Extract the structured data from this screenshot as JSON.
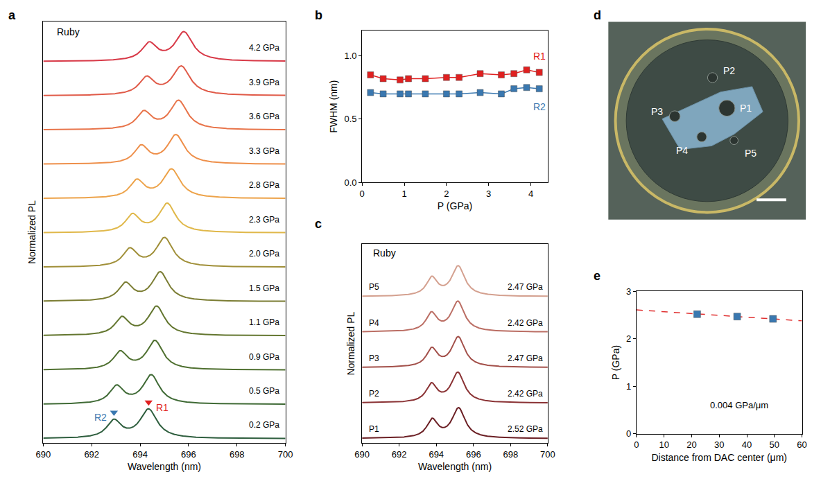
{
  "chart_data": [
    {
      "panel": "a",
      "type": "line",
      "annotation": "Ruby",
      "xlabel": "Wavelength (nm)",
      "ylabel": "Normalized PL",
      "xlim": [
        690,
        700
      ],
      "xticks": [
        690,
        692,
        694,
        696,
        698,
        700
      ],
      "tick_labels": "x",
      "peak_markers": [
        {
          "text": "R2",
          "peak": "r2",
          "color": "#3a78b0",
          "marker": "triangle-down"
        },
        {
          "text": "R1",
          "peak": "r1",
          "color": "#e02020",
          "marker": "triangle-down"
        }
      ],
      "series": [
        {
          "name": "0.2 GPa",
          "color": "#2e5e3e",
          "r1": 694.35,
          "r2": 692.92,
          "r1_height": 1,
          "r2_height": 0.6,
          "r1_fwhm": 0.85,
          "r2_fwhm": 0.71
        },
        {
          "name": "0.5 GPa",
          "color": "#3f6a35",
          "r1": 694.46,
          "r2": 693.03,
          "r1_height": 1,
          "r2_height": 0.6,
          "r1_fwhm": 0.82,
          "r2_fwhm": 0.7
        },
        {
          "name": "0.9 GPa",
          "color": "#4f7030",
          "r1": 694.61,
          "r2": 693.18,
          "r1_height": 1,
          "r2_height": 0.6,
          "r1_fwhm": 0.81,
          "r2_fwhm": 0.7
        },
        {
          "name": "1.1 GPa",
          "color": "#63762f",
          "r1": 694.68,
          "r2": 693.25,
          "r1_height": 1,
          "r2_height": 0.6,
          "r1_fwhm": 0.82,
          "r2_fwhm": 0.7
        },
        {
          "name": "1.5 GPa",
          "color": "#7b7d33",
          "r1": 694.83,
          "r2": 693.4,
          "r1_height": 1,
          "r2_height": 0.6,
          "r1_fwhm": 0.82,
          "r2_fwhm": 0.7
        },
        {
          "name": "2.0 GPa",
          "color": "#a08f38",
          "r1": 695.01,
          "r2": 693.58,
          "r1_height": 1,
          "r2_height": 0.6,
          "r1_fwhm": 0.83,
          "r2_fwhm": 0.7
        },
        {
          "name": "2.3 GPa",
          "color": "#e0b84a",
          "r1": 695.12,
          "r2": 693.69,
          "r1_height": 1,
          "r2_height": 0.6,
          "r1_fwhm": 0.83,
          "r2_fwhm": 0.7
        },
        {
          "name": "2.8 GPa",
          "color": "#eda34a",
          "r1": 695.3,
          "r2": 693.87,
          "r1_height": 1,
          "r2_height": 0.6,
          "r1_fwhm": 0.86,
          "r2_fwhm": 0.71
        },
        {
          "name": "3.3 GPa",
          "color": "#ee8f4a",
          "r1": 695.48,
          "r2": 694.05,
          "r1_height": 1,
          "r2_height": 0.6,
          "r1_fwhm": 0.85,
          "r2_fwhm": 0.7
        },
        {
          "name": "3.6 GPa",
          "color": "#e8744a",
          "r1": 695.59,
          "r2": 694.16,
          "r1_height": 1,
          "r2_height": 0.6,
          "r1_fwhm": 0.86,
          "r2_fwhm": 0.74
        },
        {
          "name": "3.9 GPa",
          "color": "#e05a48",
          "r1": 695.7,
          "r2": 694.27,
          "r1_height": 1,
          "r2_height": 0.6,
          "r1_fwhm": 0.89,
          "r2_fwhm": 0.75
        },
        {
          "name": "4.2 GPa",
          "color": "#d83a48",
          "r1": 695.81,
          "r2": 694.38,
          "r1_height": 1,
          "r2_height": 0.6,
          "r1_fwhm": 0.87,
          "r2_fwhm": 0.74
        }
      ]
    },
    {
      "panel": "b",
      "type": "line",
      "marker": "square",
      "xlabel": "P (GPa)",
      "ylabel": "FWHM (nm)",
      "xlim": [
        0,
        4.4
      ],
      "xticks": [
        0,
        1,
        2,
        3,
        4
      ],
      "ylim": [
        0,
        1.2
      ],
      "yticks": [
        {
          "value": 0,
          "label": "0.0"
        },
        {
          "value": 0.5,
          "label": "0.5"
        },
        {
          "value": 1,
          "label": "1.0"
        }
      ],
      "x": [
        0.2,
        0.5,
        0.9,
        1.1,
        1.5,
        2.0,
        2.3,
        2.8,
        3.3,
        3.6,
        3.9,
        4.2
      ],
      "series": [
        {
          "name": "R1",
          "color": "#e02020",
          "values": [
            0.85,
            0.82,
            0.81,
            0.82,
            0.82,
            0.83,
            0.83,
            0.86,
            0.85,
            0.86,
            0.89,
            0.87
          ]
        },
        {
          "name": "R2",
          "color": "#3a78b0",
          "values": [
            0.71,
            0.7,
            0.7,
            0.7,
            0.7,
            0.7,
            0.7,
            0.71,
            0.7,
            0.74,
            0.75,
            0.74
          ]
        }
      ]
    },
    {
      "panel": "c",
      "type": "line",
      "annotation": "Ruby",
      "xlabel": "Wavelength (nm)",
      "ylabel": "Normalized PL",
      "xlim": [
        690,
        700
      ],
      "xticks": [
        690,
        692,
        694,
        696,
        698,
        700
      ],
      "tick_labels": "x",
      "series": [
        {
          "name": "P1",
          "pressure_label": "2.52 GPa",
          "color": "#6b1f24",
          "r1": 695.2,
          "r2": 693.78,
          "r1_height": 1,
          "r2_height": 0.6,
          "r1_fwhm": 0.85,
          "r2_fwhm": 0.71
        },
        {
          "name": "P2",
          "pressure_label": "2.42 GPa",
          "color": "#8a3234",
          "r1": 695.16,
          "r2": 693.74,
          "r1_height": 1,
          "r2_height": 0.6,
          "r1_fwhm": 0.85,
          "r2_fwhm": 0.71
        },
        {
          "name": "P3",
          "pressure_label": "2.47 GPa",
          "color": "#a3504a",
          "r1": 695.18,
          "r2": 693.76,
          "r1_height": 1,
          "r2_height": 0.6,
          "r1_fwhm": 0.85,
          "r2_fwhm": 0.71
        },
        {
          "name": "P4",
          "pressure_label": "2.42 GPa",
          "color": "#bb6e64",
          "r1": 695.16,
          "r2": 693.74,
          "r1_height": 1,
          "r2_height": 0.6,
          "r1_fwhm": 0.85,
          "r2_fwhm": 0.71
        },
        {
          "name": "P5",
          "pressure_label": "2.47 GPa",
          "color": "#d4a08f",
          "r1": 695.18,
          "r2": 693.76,
          "r1_height": 1,
          "r2_height": 0.6,
          "r1_fwhm": 0.85,
          "r2_fwhm": 0.71
        }
      ]
    },
    {
      "panel": "d",
      "type": "image",
      "labels": [
        "P1",
        "P2",
        "P3",
        "P4",
        "P5"
      ]
    },
    {
      "panel": "e",
      "type": "scatter",
      "marker": "square",
      "color": "#3a78b0",
      "xlabel": "Distance from DAC center (μm)",
      "ylabel": "P (GPa)",
      "xlim": [
        0,
        60
      ],
      "xticks": [
        0,
        10,
        20,
        30,
        40,
        50,
        60
      ],
      "ylim": [
        0,
        3
      ],
      "yticks": [
        0,
        1,
        2,
        3
      ],
      "x": [
        22,
        36.5,
        49.5
      ],
      "values": [
        2.52,
        2.47,
        2.42
      ],
      "fit": {
        "x": [
          0,
          60
        ],
        "values": [
          2.61,
          2.38
        ],
        "color": "#e03030",
        "line_style": "dash"
      },
      "annotation": "0.004 GPa/μm"
    }
  ]
}
